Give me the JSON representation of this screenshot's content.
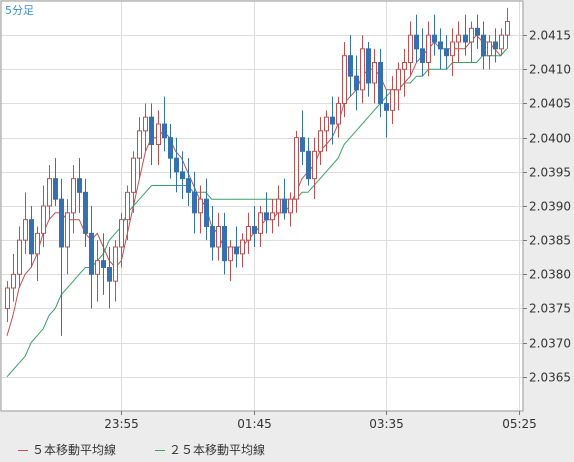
{
  "chart_data": {
    "type": "candlestick",
    "timeframe_label": "5分足",
    "ylim": [
      2.036,
      2.042
    ],
    "y_ticks": [
      "2.0365",
      "2.0370",
      "2.0375",
      "2.0380",
      "2.0385",
      "2.0390",
      "2.0395",
      "2.0400",
      "2.0405",
      "2.0410",
      "2.0415"
    ],
    "x_ticks": [
      "23:55",
      "01:45",
      "03:35",
      "05:25"
    ],
    "candles": [
      [
        2.0375,
        2.0379,
        2.0373,
        2.0378
      ],
      [
        2.0378,
        2.0383,
        2.0376,
        2.038
      ],
      [
        2.038,
        2.0387,
        2.0378,
        2.0385
      ],
      [
        2.0385,
        2.0392,
        2.0383,
        2.0388
      ],
      [
        2.0388,
        2.039,
        2.0381,
        2.0383
      ],
      [
        2.0383,
        2.0387,
        2.0379,
        2.0386
      ],
      [
        2.0386,
        2.0393,
        2.0384,
        2.039
      ],
      [
        2.039,
        2.0396,
        2.0388,
        2.0394
      ],
      [
        2.0394,
        2.0397,
        2.039,
        2.0391
      ],
      [
        2.0391,
        2.0394,
        2.0371,
        2.0384
      ],
      [
        2.0384,
        2.0391,
        2.038,
        2.0389
      ],
      [
        2.0389,
        2.0396,
        2.0386,
        2.0394
      ],
      [
        2.0394,
        2.0397,
        2.0389,
        2.0392
      ],
      [
        2.0392,
        2.0394,
        2.0384,
        2.0386
      ],
      [
        2.0386,
        2.039,
        2.0375,
        2.038
      ],
      [
        2.038,
        2.0385,
        2.0376,
        2.0382
      ],
      [
        2.0382,
        2.0386,
        2.0377,
        2.0381
      ],
      [
        2.0381,
        2.0384,
        2.0375,
        2.0379
      ],
      [
        2.0379,
        2.0385,
        2.0376,
        2.0384
      ],
      [
        2.0384,
        2.0389,
        2.0381,
        2.0388
      ],
      [
        2.0388,
        2.0393,
        2.0385,
        2.0392
      ],
      [
        2.0392,
        2.0398,
        2.0389,
        2.0397
      ],
      [
        2.0397,
        2.0403,
        2.0394,
        2.0401
      ],
      [
        2.0401,
        2.0405,
        2.0398,
        2.0403
      ],
      [
        2.0403,
        2.0405,
        2.0396,
        2.0399
      ],
      [
        2.0399,
        2.0404,
        2.0396,
        2.0402
      ],
      [
        2.0402,
        2.0406,
        2.0398,
        2.04
      ],
      [
        2.04,
        2.0402,
        2.0394,
        2.0397
      ],
      [
        2.0397,
        2.04,
        2.0392,
        2.0395
      ],
      [
        2.0395,
        2.0398,
        2.0391,
        2.0394
      ],
      [
        2.0394,
        2.0397,
        2.039,
        2.0392
      ],
      [
        2.0392,
        2.0395,
        2.0386,
        2.0389
      ],
      [
        2.0389,
        2.0393,
        2.0386,
        2.0391
      ],
      [
        2.0391,
        2.0394,
        2.0385,
        2.0387
      ],
      [
        2.0387,
        2.039,
        2.0382,
        2.0384
      ],
      [
        2.0384,
        2.0389,
        2.0382,
        2.0387
      ],
      [
        2.0387,
        2.0389,
        2.038,
        2.0382
      ],
      [
        2.0382,
        2.0385,
        2.0379,
        2.0384
      ],
      [
        2.0384,
        2.0387,
        2.0381,
        2.0383
      ],
      [
        2.0383,
        2.0386,
        2.0381,
        2.0385
      ],
      [
        2.0385,
        2.0389,
        2.0383,
        2.0387
      ],
      [
        2.0387,
        2.039,
        2.0384,
        2.0386
      ],
      [
        2.0386,
        2.039,
        2.0384,
        2.0389
      ],
      [
        2.0389,
        2.0392,
        2.0386,
        2.0388
      ],
      [
        2.0388,
        2.0391,
        2.0386,
        2.0389
      ],
      [
        2.0389,
        2.0393,
        2.0387,
        2.0391
      ],
      [
        2.0391,
        2.0394,
        2.0388,
        2.0389
      ],
      [
        2.0389,
        2.0392,
        2.0387,
        2.0391
      ],
      [
        2.0391,
        2.0401,
        2.0389,
        2.04
      ],
      [
        2.04,
        2.0404,
        2.0396,
        2.0398
      ],
      [
        2.0398,
        2.04,
        2.0393,
        2.0394
      ],
      [
        2.0394,
        2.04,
        2.0391,
        2.0398
      ],
      [
        2.0398,
        2.0403,
        2.0396,
        2.0401
      ],
      [
        2.0401,
        2.0404,
        2.0398,
        2.0403
      ],
      [
        2.0403,
        2.0406,
        2.0399,
        2.0402
      ],
      [
        2.0402,
        2.0406,
        2.04,
        2.0405
      ],
      [
        2.0405,
        2.0414,
        2.0403,
        2.0412
      ],
      [
        2.0412,
        2.0415,
        2.0406,
        2.0409
      ],
      [
        2.0409,
        2.0412,
        2.0404,
        2.0407
      ],
      [
        2.0407,
        2.0415,
        2.0405,
        2.0413
      ],
      [
        2.0413,
        2.0414,
        2.0406,
        2.0408
      ],
      [
        2.0408,
        2.0413,
        2.0405,
        2.0411
      ],
      [
        2.0411,
        2.0413,
        2.0403,
        2.0405
      ],
      [
        2.0405,
        2.0407,
        2.04,
        2.0404
      ],
      [
        2.0404,
        2.0409,
        2.0402,
        2.0407
      ],
      [
        2.0407,
        2.0411,
        2.0404,
        2.041
      ],
      [
        2.041,
        2.0413,
        2.0406,
        2.0411
      ],
      [
        2.0411,
        2.0417,
        2.0409,
        2.0415
      ],
      [
        2.0415,
        2.0418,
        2.0411,
        2.0413
      ],
      [
        2.0413,
        2.0416,
        2.0409,
        2.0411
      ],
      [
        2.0411,
        2.0417,
        2.0409,
        2.0415
      ],
      [
        2.0415,
        2.0418,
        2.0412,
        2.0414
      ],
      [
        2.0414,
        2.0416,
        2.041,
        2.0413
      ],
      [
        2.0413,
        2.0415,
        2.041,
        2.0412
      ],
      [
        2.0412,
        2.0416,
        2.0409,
        2.0414
      ],
      [
        2.0414,
        2.0417,
        2.0411,
        2.0415
      ],
      [
        2.0415,
        2.0418,
        2.0412,
        2.0414
      ],
      [
        2.0414,
        2.0417,
        2.0411,
        2.0416
      ],
      [
        2.0416,
        2.0418,
        2.0413,
        2.0415
      ],
      [
        2.0415,
        2.0417,
        2.041,
        2.0412
      ],
      [
        2.0412,
        2.0415,
        2.041,
        2.0414
      ],
      [
        2.0414,
        2.0416,
        2.0411,
        2.0413
      ],
      [
        2.0413,
        2.0416,
        2.0412,
        2.0415
      ],
      [
        2.0415,
        2.0419,
        2.0413,
        2.0417
      ]
    ],
    "series": [
      {
        "name": "５本移動平均線",
        "color": "#c05050",
        "values": [
          2.0371,
          2.0374,
          2.0378,
          2.038,
          2.0381,
          2.0383,
          2.0386,
          2.0388,
          2.0389,
          2.0389,
          2.0388,
          2.0388,
          2.0388,
          2.0386,
          2.0385,
          2.0386,
          2.0384,
          2.0382,
          2.0381,
          2.0382,
          2.0386,
          2.039,
          2.0394,
          2.0398,
          2.04,
          2.04,
          2.0401,
          2.04,
          2.0398,
          2.0397,
          2.0395,
          2.0393,
          2.0391,
          2.039,
          2.0387,
          2.0386,
          2.0384,
          2.0384,
          2.0384,
          2.0384,
          2.0385,
          2.0386,
          2.0387,
          2.0388,
          2.0388,
          2.0389,
          2.0389,
          2.039,
          2.0392,
          2.0394,
          2.0395,
          2.0396,
          2.0398,
          2.0399,
          2.04,
          2.0402,
          2.0405,
          2.0406,
          2.0407,
          2.0409,
          2.041,
          2.041,
          2.0409,
          2.0407,
          2.0407,
          2.0407,
          2.0408,
          2.0409,
          2.0411,
          2.0412,
          2.0413,
          2.0414,
          2.0413,
          2.0413,
          2.0413,
          2.0413,
          2.0413,
          2.0414,
          2.0415,
          2.0414,
          2.0414,
          2.0413,
          2.0412,
          2.0413
        ]
      },
      {
        "name": "２５本移動平均線",
        "color": "#3aa06a",
        "values": [
          2.0365,
          2.0366,
          2.0367,
          2.0368,
          2.037,
          2.0371,
          2.0372,
          2.0374,
          2.0375,
          2.0377,
          2.0378,
          2.0379,
          2.038,
          2.0381,
          2.0381,
          2.0382,
          2.0383,
          2.0385,
          2.0386,
          2.0387,
          2.0389,
          2.039,
          2.0391,
          2.0392,
          2.0393,
          2.0393,
          2.0393,
          2.0393,
          2.0393,
          2.0393,
          2.0393,
          2.0392,
          2.0392,
          2.0392,
          2.0391,
          2.0391,
          2.0391,
          2.0391,
          2.0391,
          2.0391,
          2.0391,
          2.0391,
          2.0391,
          2.0391,
          2.0391,
          2.0391,
          2.0391,
          2.0391,
          2.0391,
          2.0392,
          2.0392,
          2.0393,
          2.0394,
          2.0395,
          2.0396,
          2.0397,
          2.0399,
          2.04,
          2.0401,
          2.0402,
          2.0403,
          2.0404,
          2.0405,
          2.0406,
          2.0407,
          2.0407,
          2.0408,
          2.0408,
          2.0409,
          2.0409,
          2.041,
          2.041,
          2.041,
          2.041,
          2.0411,
          2.0411,
          2.0411,
          2.0411,
          2.0411,
          2.0412,
          2.0412,
          2.0412,
          2.0412,
          2.0413
        ]
      }
    ],
    "colors": {
      "up": "#c05050",
      "down": "#3570b0",
      "grid": "#dddddd",
      "plot_bg": "#ffffff"
    }
  }
}
